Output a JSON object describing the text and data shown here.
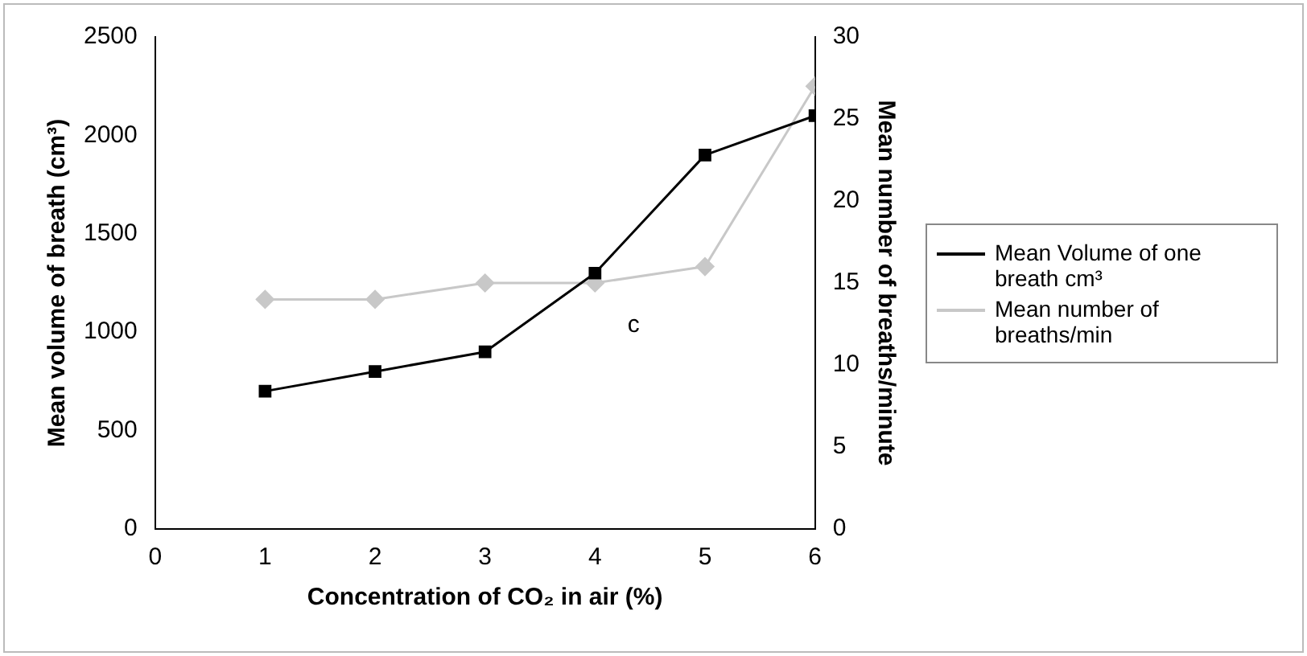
{
  "chart_data": {
    "type": "line",
    "xlabel": "Concentration of CO₂ in air (%)",
    "ylabel": "Mean volume of breath (cm³)",
    "y2label": "Mean number of breaths/minute",
    "x": [
      1,
      2,
      3,
      4,
      5,
      6
    ],
    "xlim": [
      0,
      6
    ],
    "xticks": [
      0,
      1,
      2,
      3,
      4,
      5,
      6
    ],
    "ylim": [
      0,
      2500
    ],
    "yticks": [
      0,
      500,
      1000,
      1500,
      2000,
      2500
    ],
    "y2lim": [
      0,
      30
    ],
    "y2ticks": [
      0,
      5,
      10,
      15,
      20,
      25,
      30
    ],
    "series": [
      {
        "name": "Mean Volume of one breath cm³",
        "color": "#000000",
        "marker": "square",
        "values": [
          700,
          800,
          900,
          1300,
          1900,
          2100
        ]
      },
      {
        "name": "Mean number of breaths/min",
        "color": "#c8c8c8",
        "marker": "diamond",
        "axis": "y2",
        "values": [
          14,
          14,
          15,
          15,
          16,
          27
        ]
      }
    ],
    "annotations": [
      "c"
    ],
    "grid": false,
    "legend": "right"
  }
}
